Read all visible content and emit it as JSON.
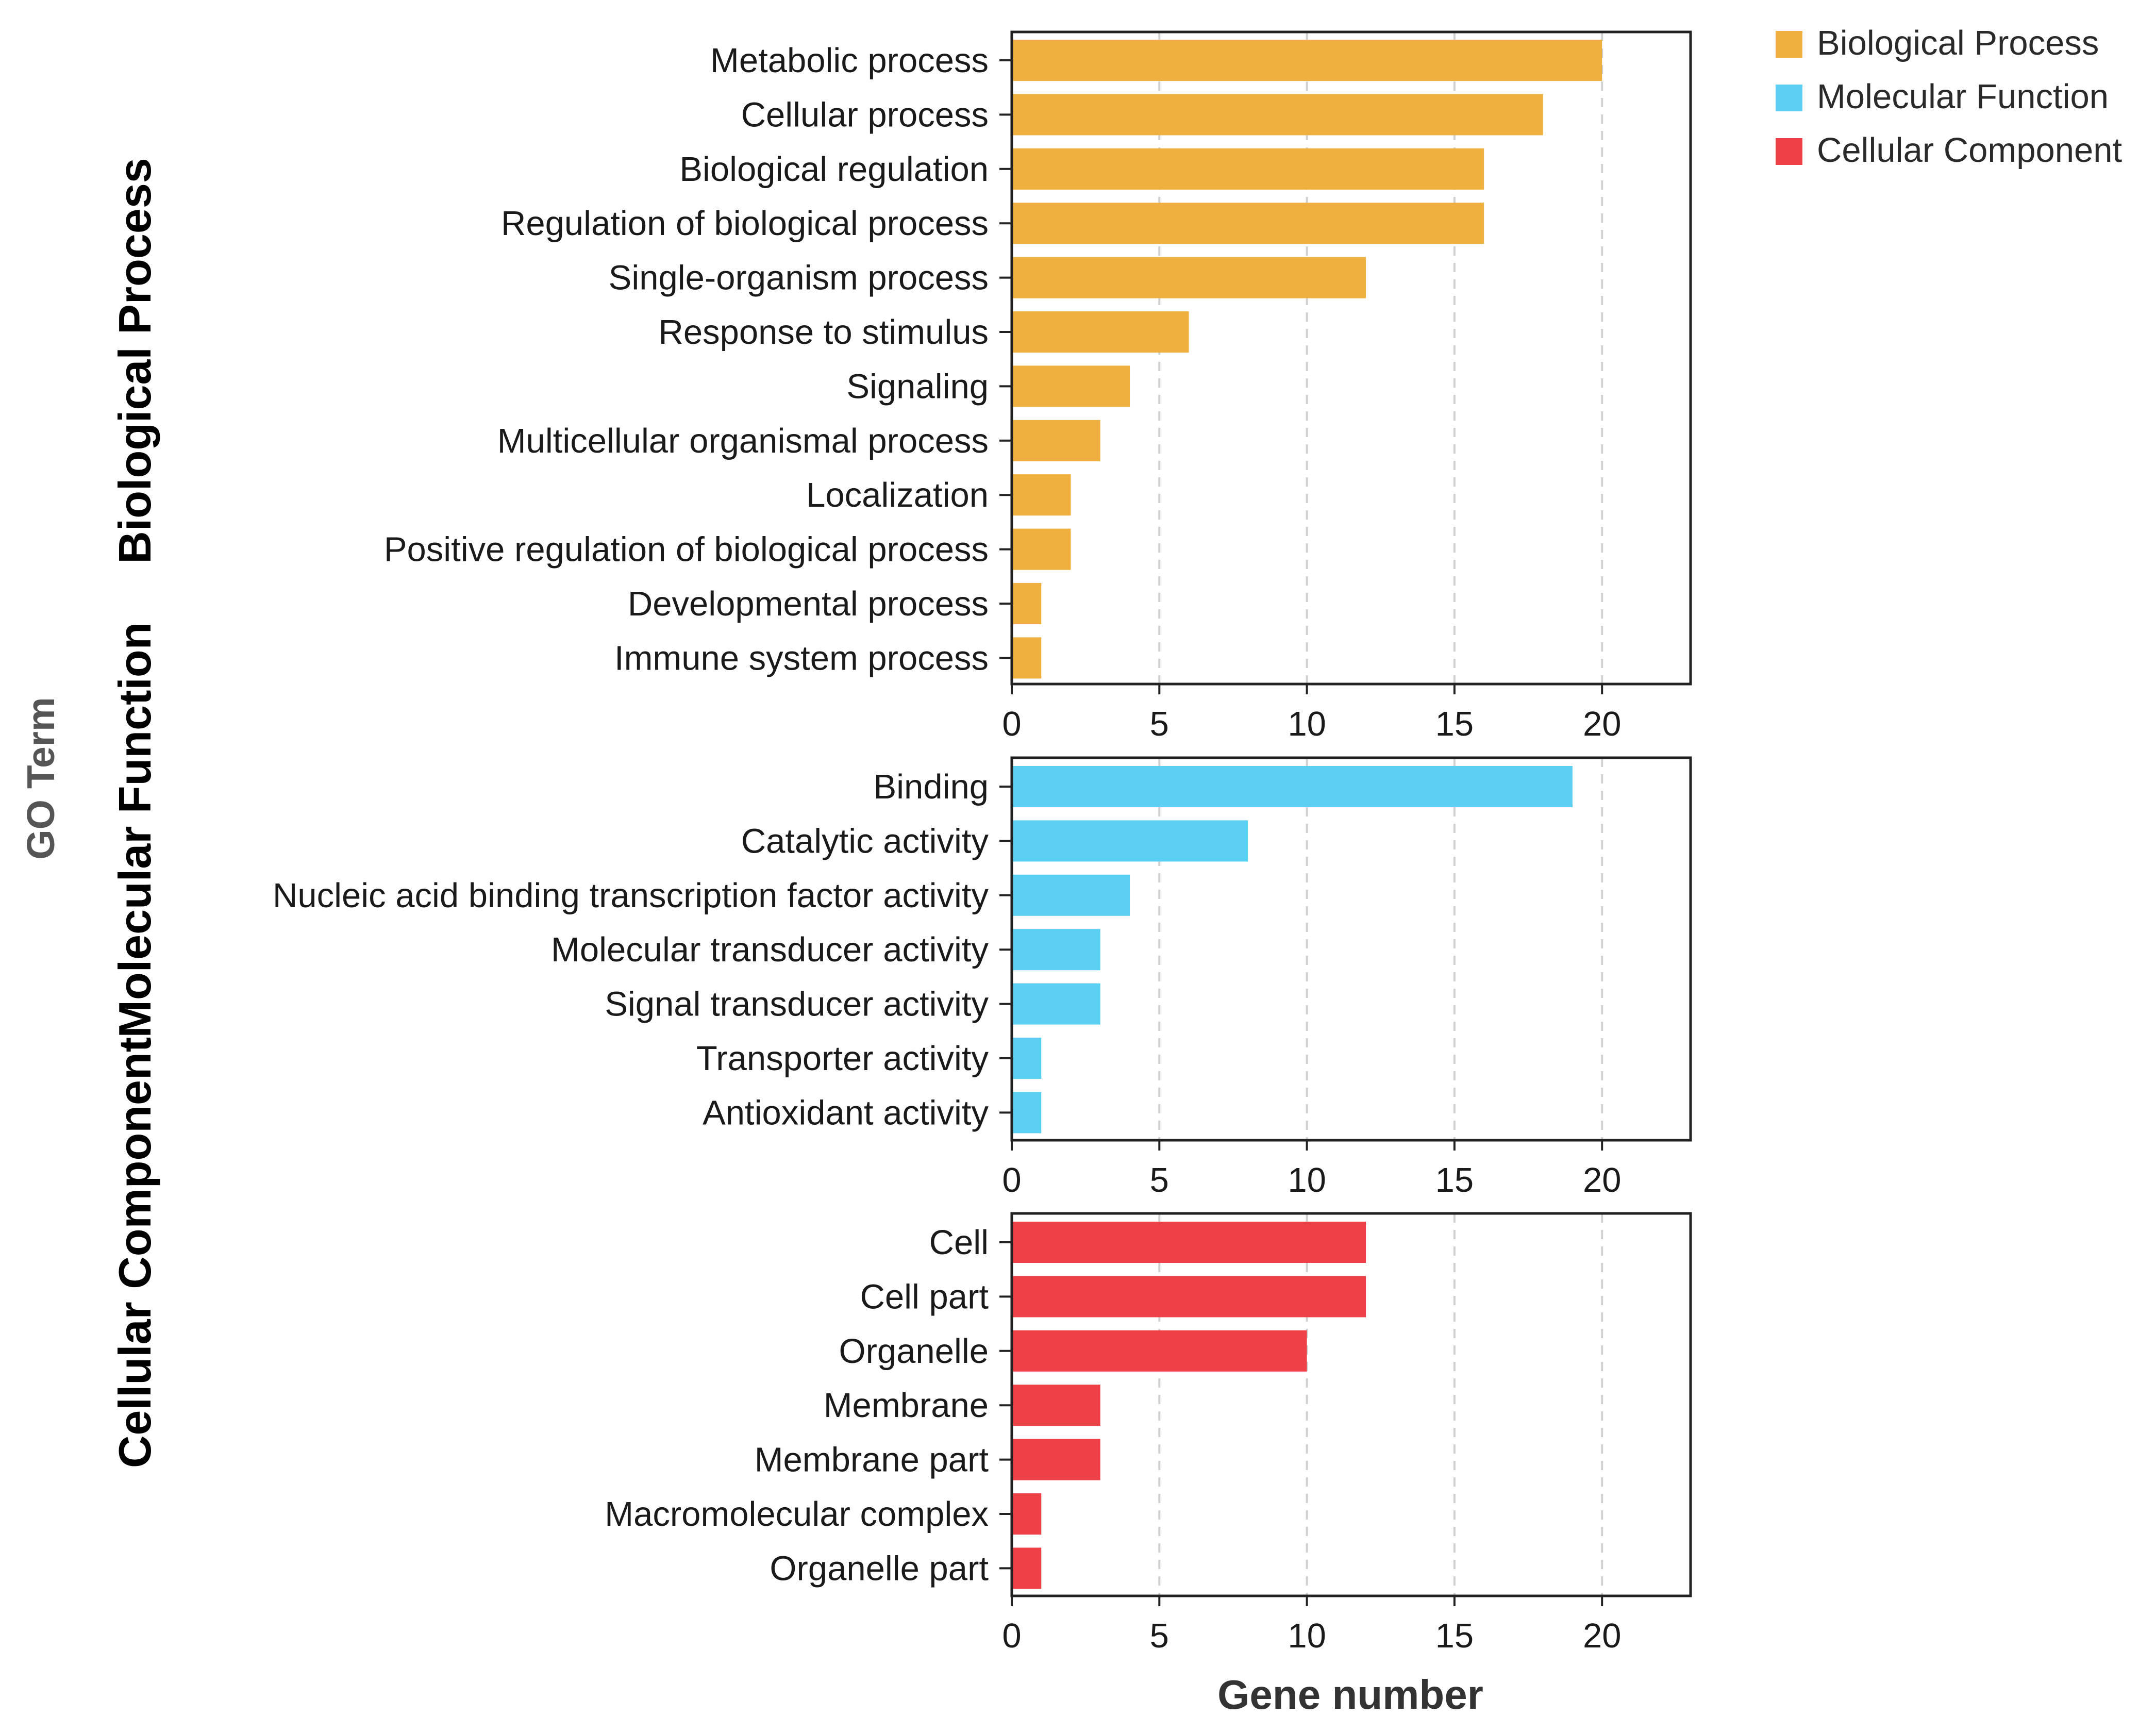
{
  "chart_data": {
    "type": "bar",
    "orientation": "horizontal",
    "xlabel": "Gene number",
    "ylabel": "GO Term",
    "xlim": [
      0,
      23
    ],
    "xticks": [
      0,
      5,
      10,
      15,
      20
    ],
    "grid": "vertical dashed",
    "legend_position": "top-right",
    "panels": [
      {
        "name": "Biological Process",
        "color": "#f0b040",
        "categories": [
          "Metabolic process",
          "Cellular process",
          "Biological regulation",
          "Regulation of biological process",
          "Single-organism process",
          "Response to stimulus",
          "Signaling",
          "Multicellular organismal process",
          "Localization",
          "Positive regulation of biological process",
          "Developmental process",
          "Immune system process"
        ],
        "values": [
          20,
          18,
          16,
          16,
          12,
          6,
          4,
          3,
          2,
          2,
          1,
          1
        ]
      },
      {
        "name": "Molecular Function",
        "color": "#5bd0f3",
        "categories": [
          "Binding",
          "Catalytic activity",
          "Nucleic acid binding transcription factor activity",
          "Molecular transducer activity",
          "Signal transducer activity",
          "Transporter activity",
          "Antioxidant activity"
        ],
        "values": [
          19,
          8,
          4,
          3,
          3,
          1,
          1
        ]
      },
      {
        "name": "Cellular Component",
        "color": "#ef4047",
        "categories": [
          "Cell",
          "Cell part",
          "Organelle",
          "Membrane",
          "Membrane part",
          "Macromolecular complex",
          "Organelle part"
        ],
        "values": [
          12,
          12,
          10,
          3,
          3,
          1,
          1
        ]
      }
    ],
    "legend": [
      {
        "label": "Biological Process",
        "color": "#f0b040"
      },
      {
        "label": "Molecular Function",
        "color": "#5bd0f3"
      },
      {
        "label": "Cellular Component",
        "color": "#ef4047"
      }
    ]
  }
}
